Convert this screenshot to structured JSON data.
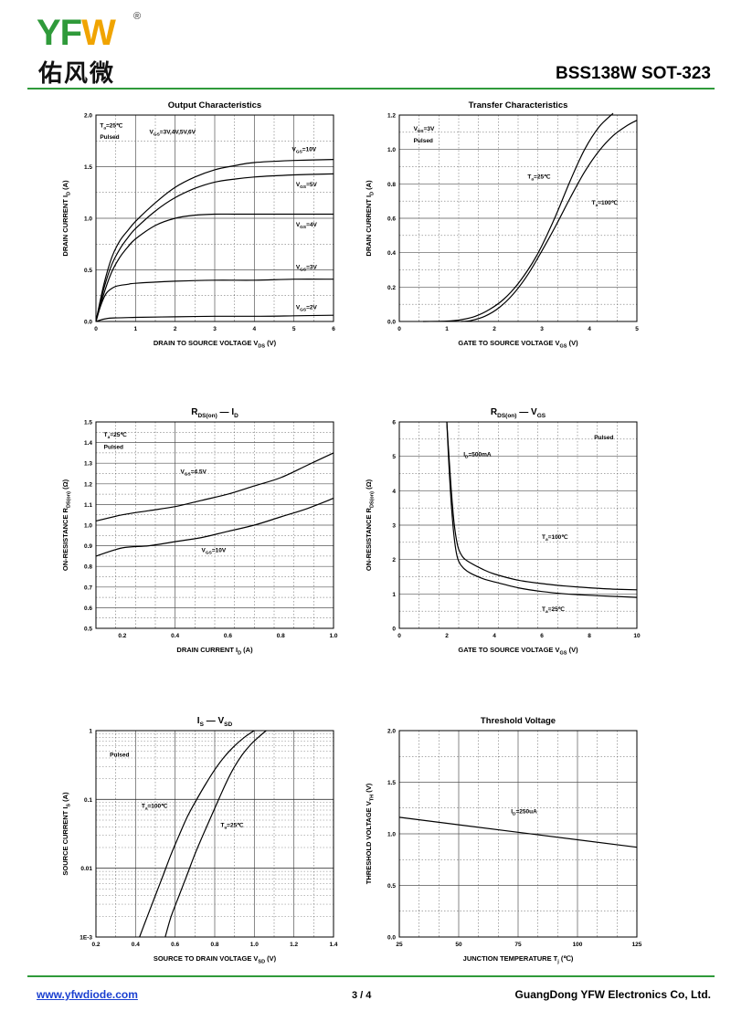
{
  "header": {
    "logo_latin_a": "YF",
    "logo_latin_b": "W",
    "logo_reg": "®",
    "logo_cn": "佑风微",
    "part_number": "BSS138W   SOT-323"
  },
  "footer": {
    "website": "www.yfwdiode.com",
    "page": "3 / 4",
    "company": "GuangDong YFW Electronics Co, Ltd."
  },
  "colors": {
    "brand_green": "#2f9a3a",
    "brand_orange": "#f0a400",
    "link_blue": "#1a3fd0"
  },
  "chart_data": [
    {
      "id": "c1",
      "type": "line",
      "title": "Output Characteristics",
      "xlabel": "DRAIN TO SOURCE VOLTAGE  V",
      "xsub": "DS",
      "xunit": "(V)",
      "ylabel": "DRAIN CURRENT  I",
      "ysub": "D",
      "yunit": "(A)",
      "xlim": [
        0,
        6
      ],
      "ylim": [
        0,
        2.0
      ],
      "xticks": [
        0,
        1,
        2,
        3,
        4,
        5,
        6
      ],
      "xtick_labels": [
        "0",
        "1",
        "2",
        "3",
        "4",
        "5",
        "6"
      ],
      "yticks": [
        0,
        0.5,
        1.0,
        1.5,
        2.0
      ],
      "ytick_labels": [
        "0.0",
        "0.5",
        "1.0",
        "1.5",
        "2.0"
      ],
      "grid": true,
      "annotations": [
        {
          "text": "T",
          "sub": "a",
          "tail": "=25℃",
          "x": 0.1,
          "y": 1.88
        },
        {
          "text": "Pulsed",
          "x": 0.1,
          "y": 1.77
        },
        {
          "text": "V",
          "sub": "GS",
          "tail": "=3V,4V,5V,6V",
          "x": 1.35,
          "y": 1.82
        },
        {
          "text": "V",
          "sub": "GS",
          "tail": "=10V",
          "x": 4.95,
          "y": 1.65
        },
        {
          "text": "V",
          "sub": "GS",
          "tail": "=5V",
          "x": 5.05,
          "y": 1.31
        },
        {
          "text": "V",
          "sub": "GS",
          "tail": "=4V",
          "x": 5.05,
          "y": 0.92
        },
        {
          "text": "V",
          "sub": "GS",
          "tail": "=3V",
          "x": 5.05,
          "y": 0.51
        },
        {
          "text": "V",
          "sub": "GS",
          "tail": "=2V",
          "x": 5.05,
          "y": 0.12
        }
      ],
      "series": [
        {
          "x": [
            0,
            0.2,
            0.4,
            0.6,
            0.8,
            1,
            1.5,
            2,
            2.5,
            3,
            3.5,
            4,
            5,
            6
          ],
          "y": [
            0,
            0.36,
            0.62,
            0.78,
            0.88,
            0.97,
            1.15,
            1.3,
            1.4,
            1.47,
            1.51,
            1.54,
            1.56,
            1.57
          ]
        },
        {
          "x": [
            0,
            0.2,
            0.4,
            0.6,
            0.8,
            1,
            1.5,
            2,
            2.5,
            3,
            3.5,
            4,
            5,
            6
          ],
          "y": [
            0,
            0.32,
            0.55,
            0.7,
            0.81,
            0.9,
            1.07,
            1.2,
            1.29,
            1.35,
            1.38,
            1.4,
            1.42,
            1.43
          ]
        },
        {
          "x": [
            0,
            0.2,
            0.4,
            0.6,
            0.8,
            1,
            1.5,
            2,
            2.5,
            3,
            3.5,
            4,
            5,
            6
          ],
          "y": [
            0,
            0.27,
            0.48,
            0.62,
            0.72,
            0.8,
            0.93,
            1.0,
            1.03,
            1.04,
            1.04,
            1.04,
            1.04,
            1.04
          ]
        },
        {
          "x": [
            0,
            0.1,
            0.2,
            0.3,
            0.5,
            0.8,
            1,
            2,
            3,
            4,
            5,
            6
          ],
          "y": [
            0,
            0.13,
            0.23,
            0.29,
            0.34,
            0.36,
            0.37,
            0.39,
            0.4,
            0.4,
            0.41,
            0.41
          ]
        },
        {
          "x": [
            0,
            0.3,
            1,
            2,
            3,
            4,
            5,
            6
          ],
          "y": [
            0,
            0.03,
            0.04,
            0.045,
            0.05,
            0.05,
            0.055,
            0.06
          ]
        }
      ]
    },
    {
      "id": "c2",
      "type": "line",
      "title": "Transfer Characteristics",
      "xlabel": "GATE TO SOURCE VOLTAGE  V",
      "xsub": "GS",
      "xunit": "(V)",
      "ylabel": "DRAIN CURRENT  I",
      "ysub": "D",
      "yunit": "(A)",
      "xlim": [
        0,
        5
      ],
      "ylim": [
        0,
        1.2
      ],
      "xticks": [
        0,
        1,
        2,
        3,
        4,
        5
      ],
      "xtick_labels": [
        "0",
        "1",
        "2",
        "3",
        "4",
        "5"
      ],
      "yticks": [
        0,
        0.2,
        0.4,
        0.6,
        0.8,
        1.0,
        1.2
      ],
      "ytick_labels": [
        "0.0",
        "0.2",
        "0.4",
        "0.6",
        "0.8",
        "1.0",
        "1.2"
      ],
      "grid": true,
      "annotations": [
        {
          "text": "V",
          "sub": "DS",
          "tail": "=3V",
          "x": 0.3,
          "y": 1.11
        },
        {
          "text": "Pulsed",
          "x": 0.3,
          "y": 1.04
        },
        {
          "text": "T",
          "sub": "a",
          "tail": "=25℃",
          "x": 2.7,
          "y": 0.83
        },
        {
          "text": "T",
          "sub": "a",
          "tail": "=100℃",
          "x": 4.05,
          "y": 0.68
        }
      ],
      "series": [
        {
          "x": [
            0.5,
            1,
            1.3,
            1.6,
            1.9,
            2.2,
            2.5,
            2.8,
            3.0,
            3.3,
            3.6,
            3.9,
            4.2,
            4.5
          ],
          "y": [
            0,
            0.002,
            0.01,
            0.03,
            0.07,
            0.13,
            0.22,
            0.34,
            0.44,
            0.62,
            0.82,
            1.0,
            1.13,
            1.21
          ]
        },
        {
          "x": [
            1.3,
            1.5,
            1.8,
            2.1,
            2.4,
            2.7,
            3.0,
            3.3,
            3.6,
            3.9,
            4.2,
            4.5,
            4.8,
            5.0
          ],
          "y": [
            0,
            0.005,
            0.03,
            0.08,
            0.16,
            0.27,
            0.41,
            0.56,
            0.72,
            0.87,
            0.99,
            1.08,
            1.14,
            1.17
          ]
        }
      ]
    },
    {
      "id": "c3",
      "type": "line",
      "title": "R",
      "title_sub": "DS(on)",
      "title_tail": "I",
      "title_tail_sub": "D",
      "xlabel": "DRAIN CURRENT  I",
      "xsub": "D",
      "xunit": "(A)",
      "ylabel": "ON-RESISTANCE  R",
      "ysub": "DS(on)",
      "yunit": "(Ω)",
      "xlim": [
        0.1,
        1.0
      ],
      "ylim": [
        0.5,
        1.5
      ],
      "xticks": [
        0.2,
        0.4,
        0.6,
        0.8,
        1.0
      ],
      "xtick_labels": [
        "0.2",
        "0.4",
        "0.6",
        "0.8",
        "1.0"
      ],
      "yticks": [
        0.5,
        0.6,
        0.7,
        0.8,
        0.9,
        1.0,
        1.1,
        1.2,
        1.3,
        1.4,
        1.5
      ],
      "ytick_labels": [
        "0.5",
        "0.6",
        "0.7",
        "0.8",
        "0.9",
        "1.0",
        "1.1",
        "1.2",
        "1.3",
        "1.4",
        "1.5"
      ],
      "grid": true,
      "annotations": [
        {
          "text": "T",
          "sub": "a",
          "tail": "=25℃",
          "x": 0.13,
          "y": 1.43
        },
        {
          "text": "Pulsed",
          "x": 0.13,
          "y": 1.37
        },
        {
          "text": "V",
          "sub": "GS",
          "tail": "=4.5V",
          "x": 0.42,
          "y": 1.25
        },
        {
          "text": "V",
          "sub": "GS",
          "tail": "=10V",
          "x": 0.5,
          "y": 0.87
        }
      ],
      "series": [
        {
          "x": [
            0.1,
            0.2,
            0.3,
            0.4,
            0.5,
            0.6,
            0.7,
            0.8,
            0.9,
            1.0
          ],
          "y": [
            1.02,
            1.05,
            1.07,
            1.09,
            1.12,
            1.15,
            1.19,
            1.23,
            1.29,
            1.35
          ]
        },
        {
          "x": [
            0.1,
            0.2,
            0.3,
            0.4,
            0.5,
            0.6,
            0.7,
            0.8,
            0.9,
            1.0
          ],
          "y": [
            0.85,
            0.89,
            0.9,
            0.92,
            0.94,
            0.97,
            1.0,
            1.04,
            1.08,
            1.13
          ]
        }
      ]
    },
    {
      "id": "c4",
      "type": "line",
      "title": "R",
      "title_sub": "DS(on)",
      "title_tail": "V",
      "title_tail_sub": "GS",
      "xlabel": "GATE TO SOURCE VOLTAGE  V",
      "xsub": "GS",
      "xunit": "(V)",
      "ylabel": "ON-RESISTANCE  R",
      "ysub": "DS(on)",
      "yunit": "(Ω)",
      "xlim": [
        0,
        10
      ],
      "ylim": [
        0,
        6
      ],
      "xticks": [
        0,
        2,
        4,
        6,
        8,
        10
      ],
      "xtick_labels": [
        "0",
        "2",
        "4",
        "6",
        "8",
        "10"
      ],
      "yticks": [
        0,
        1,
        2,
        3,
        4,
        5,
        6
      ],
      "ytick_labels": [
        "0",
        "1",
        "2",
        "3",
        "4",
        "5",
        "6"
      ],
      "grid": true,
      "annotations": [
        {
          "text": "Pulsed",
          "x": 8.2,
          "y": 5.5
        },
        {
          "text": "I",
          "sub": "D",
          "tail": "=500mA",
          "x": 2.7,
          "y": 5.0
        },
        {
          "text": "T",
          "sub": "a",
          "tail": "=100℃",
          "x": 6.0,
          "y": 2.6
        },
        {
          "text": "T",
          "sub": "a",
          "tail": "=25℃",
          "x": 6.0,
          "y": 0.5
        }
      ],
      "series": [
        {
          "x": [
            2.0,
            2.1,
            2.2,
            2.3,
            2.4,
            2.5,
            2.7,
            3.0,
            3.5,
            4,
            5,
            6,
            7,
            8,
            9,
            10
          ],
          "y": [
            6.0,
            4.9,
            3.9,
            3.1,
            2.6,
            2.3,
            2.05,
            1.9,
            1.72,
            1.58,
            1.4,
            1.3,
            1.23,
            1.18,
            1.14,
            1.12
          ]
        },
        {
          "x": [
            2.0,
            2.1,
            2.2,
            2.3,
            2.4,
            2.5,
            2.7,
            3.0,
            3.5,
            4,
            5,
            6,
            7,
            8,
            9,
            10
          ],
          "y": [
            6.0,
            4.6,
            3.5,
            2.7,
            2.2,
            1.95,
            1.75,
            1.6,
            1.45,
            1.35,
            1.18,
            1.07,
            1.0,
            0.96,
            0.93,
            0.9
          ]
        }
      ]
    },
    {
      "id": "c5",
      "type": "line",
      "title": "I",
      "title_sub": "S",
      "title_tail": "V",
      "title_tail_sub": "SD",
      "xlabel": "SOURCE TO DRAIN VOLTAGE  V",
      "xsub": "SD",
      "xunit": "(V)",
      "ylabel": "SOURCE CURRENT  I",
      "ysub": "S",
      "yunit": "(A)",
      "xlim": [
        0.2,
        1.4
      ],
      "ylim": [
        0.001,
        1
      ],
      "yscale": "log",
      "xticks": [
        0.2,
        0.4,
        0.6,
        0.8,
        1.0,
        1.2,
        1.4
      ],
      "xtick_labels": [
        "0.2",
        "0.4",
        "0.6",
        "0.8",
        "1.0",
        "1.2",
        "1.4"
      ],
      "yticks": [
        0.001,
        0.01,
        0.1,
        1
      ],
      "ytick_labels": [
        "1E-3",
        "0.01",
        "0.1",
        "1"
      ],
      "grid": true,
      "annotations": [
        {
          "text": "Pulsed",
          "x": 0.27,
          "y": 0.42
        },
        {
          "text": "T",
          "sub": "a",
          "tail": "=100℃",
          "x": 0.43,
          "y": 0.075
        },
        {
          "text": "T",
          "sub": "a",
          "tail": "=25℃",
          "x": 0.83,
          "y": 0.04
        }
      ],
      "series": [
        {
          "x": [
            0.42,
            0.46,
            0.5,
            0.54,
            0.58,
            0.62,
            0.66,
            0.7,
            0.75,
            0.8,
            0.85,
            0.9,
            0.95,
            1.0
          ],
          "y": [
            0.001,
            0.002,
            0.004,
            0.008,
            0.016,
            0.03,
            0.055,
            0.09,
            0.16,
            0.27,
            0.42,
            0.6,
            0.8,
            1.0
          ]
        },
        {
          "x": [
            0.55,
            0.58,
            0.62,
            0.66,
            0.7,
            0.74,
            0.78,
            0.82,
            0.86,
            0.9,
            0.94,
            0.98,
            1.02,
            1.06
          ],
          "y": [
            0.001,
            0.002,
            0.004,
            0.008,
            0.016,
            0.03,
            0.055,
            0.1,
            0.18,
            0.3,
            0.45,
            0.62,
            0.8,
            1.0
          ]
        }
      ]
    },
    {
      "id": "c6",
      "type": "line",
      "title": "Threshold Voltage",
      "xlabel": "JUNCTION TEMPERATURE  T",
      "xsub": "j",
      "xunit": "(℃)",
      "ylabel": "THRESHOLD VOLTAGE  V",
      "ysub": "TH",
      "yunit": "(V)",
      "xlim": [
        25,
        125
      ],
      "ylim": [
        0,
        2.0
      ],
      "xticks": [
        25,
        50,
        75,
        100,
        125
      ],
      "xtick_labels": [
        "25",
        "50",
        "75",
        "100",
        "125"
      ],
      "yticks": [
        0,
        0.5,
        1.0,
        1.5,
        2.0
      ],
      "ytick_labels": [
        "0.0",
        "0.5",
        "1.0",
        "1.5",
        "2.0"
      ],
      "grid": true,
      "annotations": [
        {
          "text": "I",
          "sub": "D",
          "tail": "=250uA",
          "x": 72,
          "y": 1.2
        }
      ],
      "series": [
        {
          "x": [
            25,
            125
          ],
          "y": [
            1.16,
            0.87
          ]
        }
      ]
    }
  ]
}
